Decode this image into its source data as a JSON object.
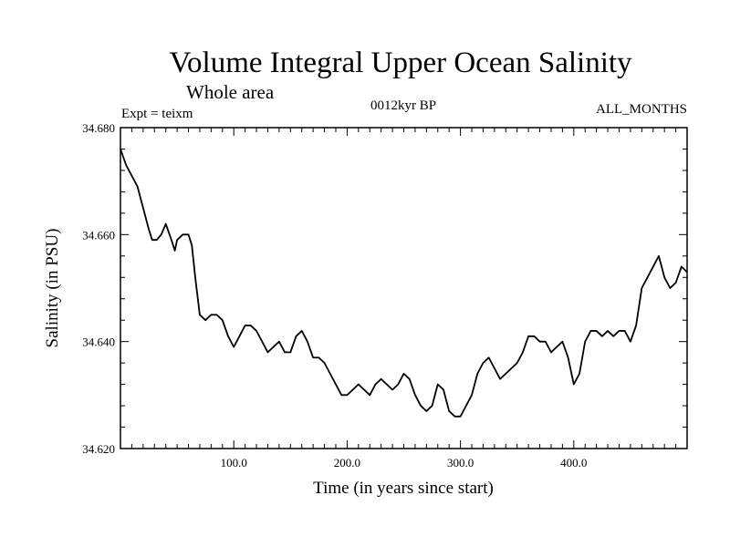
{
  "chart_data": {
    "type": "line",
    "title": "Volume Integral Upper Ocean Salinity",
    "subtitle": "Whole area",
    "experiment_label": "Expt = teixm",
    "period_label": "0012kyr BP",
    "months_label": "ALL_MONTHS",
    "xlabel": "Time (in years since start)",
    "ylabel": "Salinity (in PSU)",
    "xlim": [
      0,
      500
    ],
    "ylim": [
      34.62,
      34.68
    ],
    "x_ticks": [
      100,
      200,
      300,
      400
    ],
    "x_tick_labels": [
      "100.0",
      "200.0",
      "300.0",
      "400.0"
    ],
    "y_ticks": [
      34.62,
      34.64,
      34.66,
      34.68
    ],
    "y_tick_labels": [
      "34.620",
      "34.640",
      "34.660",
      "34.680"
    ],
    "series": [
      {
        "name": "Salinity",
        "x": [
          0,
          5,
          10,
          15,
          20,
          25,
          28,
          32,
          36,
          40,
          45,
          48,
          50,
          55,
          60,
          63,
          66,
          70,
          75,
          80,
          85,
          90,
          95,
          100,
          105,
          110,
          115,
          120,
          125,
          130,
          135,
          140,
          145,
          150,
          155,
          160,
          165,
          170,
          175,
          180,
          185,
          190,
          195,
          200,
          205,
          210,
          215,
          220,
          225,
          230,
          235,
          240,
          245,
          250,
          255,
          260,
          265,
          270,
          275,
          280,
          285,
          290,
          295,
          300,
          305,
          310,
          315,
          320,
          325,
          330,
          335,
          340,
          345,
          350,
          355,
          360,
          365,
          370,
          375,
          380,
          385,
          390,
          395,
          400,
          405,
          410,
          415,
          420,
          425,
          430,
          435,
          440,
          445,
          450,
          455,
          460,
          465,
          470,
          475,
          480,
          485,
          490,
          495,
          500
        ],
        "values": [
          34.676,
          34.673,
          34.671,
          34.669,
          34.665,
          34.661,
          34.659,
          34.659,
          34.66,
          34.662,
          34.659,
          34.657,
          34.659,
          34.66,
          34.66,
          34.658,
          34.652,
          34.645,
          34.644,
          34.645,
          34.645,
          34.644,
          34.641,
          34.639,
          34.641,
          34.643,
          34.643,
          34.642,
          34.64,
          34.638,
          34.639,
          34.64,
          34.638,
          34.638,
          34.641,
          34.642,
          34.64,
          34.637,
          34.637,
          34.636,
          34.634,
          34.632,
          34.63,
          34.63,
          34.631,
          34.632,
          34.631,
          34.63,
          34.632,
          34.633,
          34.632,
          34.631,
          34.632,
          34.634,
          34.633,
          34.63,
          34.628,
          34.627,
          34.628,
          34.632,
          34.631,
          34.627,
          34.626,
          34.626,
          34.628,
          34.63,
          34.634,
          34.636,
          34.637,
          34.635,
          34.633,
          34.634,
          34.635,
          34.636,
          34.638,
          34.641,
          34.641,
          34.64,
          34.64,
          34.638,
          34.639,
          34.64,
          34.637,
          34.632,
          34.634,
          34.64,
          34.642,
          34.642,
          34.641,
          34.642,
          34.641,
          34.642,
          34.642,
          34.64,
          34.643,
          34.65,
          34.652,
          34.654,
          34.656,
          34.652,
          34.65,
          34.651,
          34.654,
          34.653
        ]
      }
    ]
  }
}
